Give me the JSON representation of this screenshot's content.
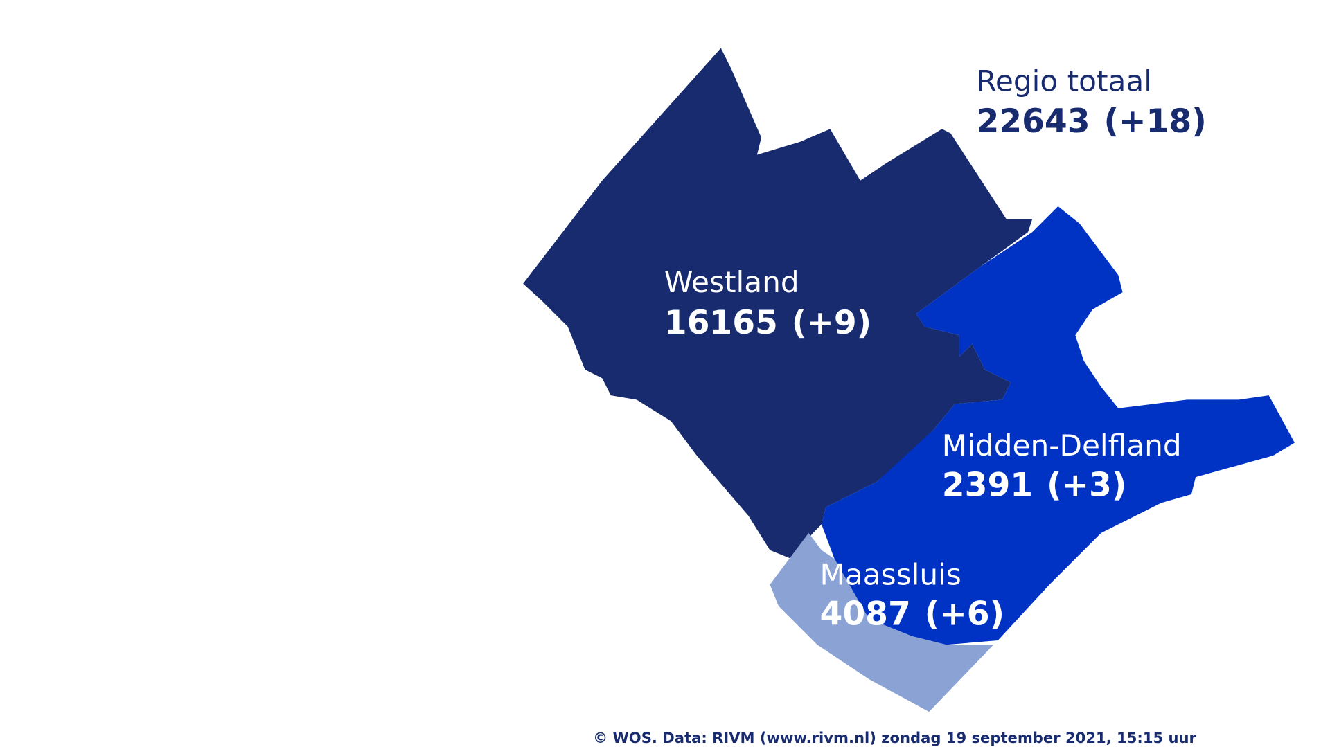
{
  "title": "Regio totaal",
  "total": {
    "count": 22643,
    "change": "(+18)"
  },
  "regions": [
    {
      "name": "Westland",
      "count": 16165,
      "change": "(+9)"
    },
    {
      "name": "Midden-Delfland",
      "count": 2391,
      "change": "(+3)"
    },
    {
      "name": "Maassluis",
      "count": 4087,
      "change": "(+6)"
    }
  ],
  "credit": "© WOS. Data: RIVM (www.rivm.nl) zondag 19 september 2021, 15:15 uur"
}
